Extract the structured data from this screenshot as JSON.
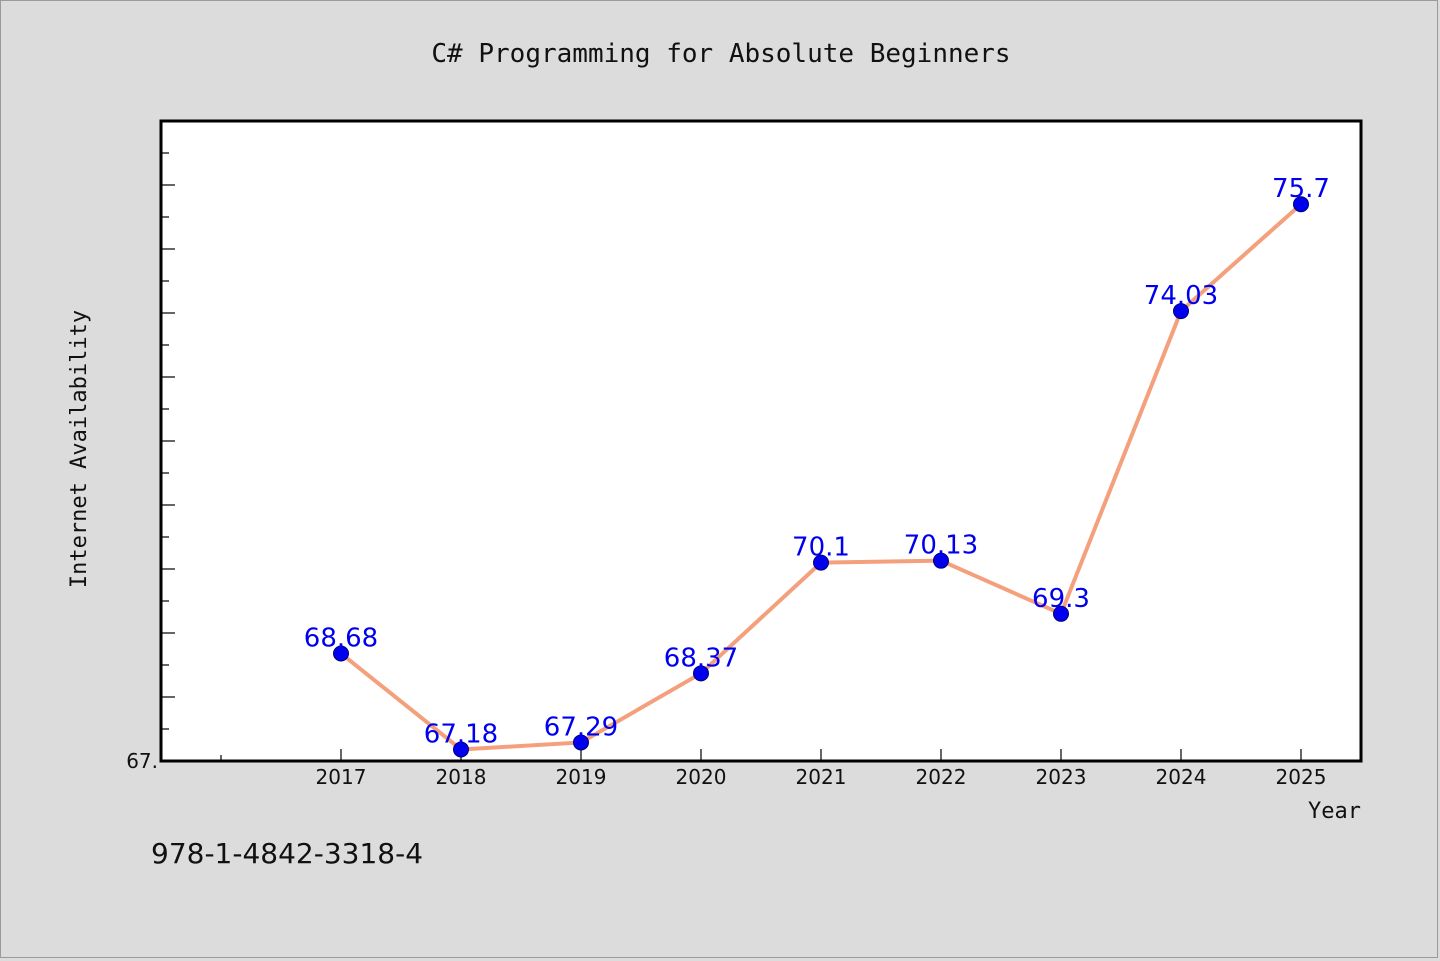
{
  "isbn": "978-1-4842-3318-4",
  "chart_data": {
    "type": "line",
    "title": "C# Programming for Absolute Beginners",
    "xlabel": "Year",
    "ylabel": "Internet Availability",
    "categories": [
      "2017",
      "2018",
      "2019",
      "2020",
      "2021",
      "2022",
      "2023",
      "2024",
      "2025"
    ],
    "series": [
      {
        "values": [
          68.68,
          67.18,
          67.29,
          68.37,
          70.1,
          70.13,
          69.3,
          74.03,
          75.7
        ],
        "data_labels": [
          "68.68",
          "67.18",
          "67.29",
          "68.37",
          "70.1",
          "70.13",
          "69.3",
          "74.03",
          "75.7"
        ]
      }
    ],
    "ylim": [
      67.0,
      77.0
    ],
    "y_tick_labels": [
      "67."
    ],
    "grid": false,
    "line_color": "#f4a07c",
    "marker_color": "#0000ee",
    "label_color": "#0000ee"
  }
}
